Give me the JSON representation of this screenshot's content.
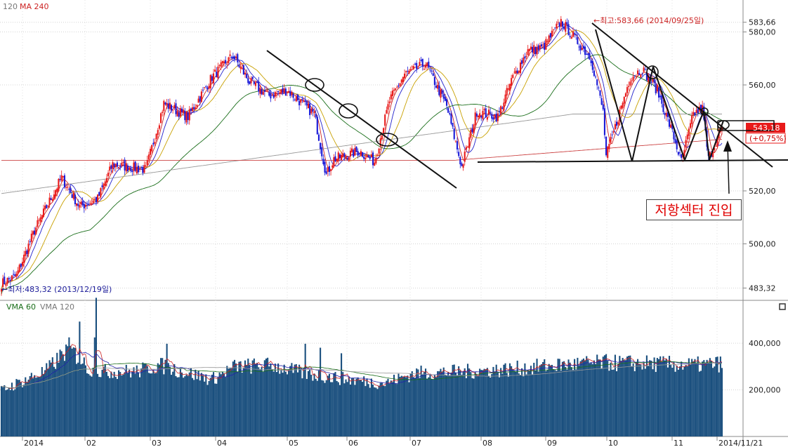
{
  "chart_data": {
    "type": "candlestick",
    "price_panel": {
      "legend": {
        "prefix": ", 120",
        "ma240": "MA 240"
      },
      "y_ticks": [
        {
          "v": 583.66,
          "label": "583,66"
        },
        {
          "v": 580,
          "label": "580,00"
        },
        {
          "v": 560,
          "label": "560,00"
        },
        {
          "v": 520,
          "label": "520,00"
        },
        {
          "v": 500,
          "label": "500,00"
        },
        {
          "v": 483.32,
          "label": "483,32"
        }
      ],
      "ylim": [
        480,
        591
      ],
      "high_label": "←최고:583,66 (2014/09/25일)",
      "low_label": "←최저:483,32 (2013/12/19일)",
      "current_price": "543,18",
      "current_change": "(+0,75%)",
      "annotation": "저항섹터 진입"
    },
    "volume_panel": {
      "legend": {
        "vma60": "VMA 60",
        "vma120": "VMA 120"
      },
      "y_ticks": [
        {
          "v": 400000,
          "label": "400,000"
        },
        {
          "v": 200000,
          "label": "200,000"
        }
      ],
      "ylim": [
        0,
        560000
      ]
    },
    "x_ticks": [
      "2014",
      "02",
      "03",
      "04",
      "05",
      "06",
      "07",
      "08",
      "09",
      "10",
      "11",
      "2014/11/21"
    ],
    "price_anchors": [
      [
        0,
        485
      ],
      [
        10,
        488
      ],
      [
        22,
        505
      ],
      [
        40,
        525
      ],
      [
        52,
        514
      ],
      [
        64,
        517
      ],
      [
        74,
        530
      ],
      [
        96,
        528
      ],
      [
        108,
        553
      ],
      [
        124,
        548
      ],
      [
        140,
        563
      ],
      [
        150,
        569
      ],
      [
        154,
        571
      ],
      [
        165,
        561
      ],
      [
        178,
        556
      ],
      [
        190,
        558
      ],
      [
        208,
        549
      ],
      [
        216,
        526
      ],
      [
        221,
        532
      ],
      [
        238,
        535
      ],
      [
        248,
        531
      ],
      [
        258,
        554
      ],
      [
        268,
        564
      ],
      [
        282,
        568
      ],
      [
        296,
        552
      ],
      [
        306,
        529
      ],
      [
        316,
        550
      ],
      [
        330,
        548
      ],
      [
        340,
        563
      ],
      [
        350,
        573
      ],
      [
        360,
        574
      ],
      [
        372,
        584
      ],
      [
        382,
        577
      ],
      [
        392,
        570
      ],
      [
        400,
        550
      ],
      [
        402,
        533
      ],
      [
        408,
        544
      ],
      [
        418,
        563
      ],
      [
        426,
        566
      ],
      [
        436,
        558
      ],
      [
        446,
        542
      ],
      [
        452,
        531
      ],
      [
        460,
        549
      ],
      [
        466,
        551
      ],
      [
        470,
        532
      ],
      [
        478,
        543
      ]
    ],
    "volume_profile": [
      [
        0,
        0.58
      ],
      [
        30,
        0.83
      ],
      [
        45,
        1.12
      ],
      [
        60,
        0.82
      ],
      [
        90,
        0.82
      ],
      [
        105,
        0.9
      ],
      [
        140,
        0.72
      ],
      [
        155,
        0.88
      ],
      [
        180,
        0.9
      ],
      [
        200,
        0.8
      ],
      [
        230,
        0.72
      ],
      [
        255,
        0.67
      ],
      [
        275,
        0.8
      ],
      [
        310,
        0.82
      ],
      [
        340,
        0.85
      ],
      [
        370,
        0.9
      ],
      [
        400,
        0.93
      ],
      [
        430,
        0.92
      ],
      [
        460,
        0.9
      ],
      [
        480,
        0.92
      ]
    ],
    "volume_spikes": [
      [
        52,
        1.45
      ],
      [
        62,
        1.25
      ],
      [
        63,
        1.75
      ],
      [
        110,
        1.17
      ],
      [
        202,
        1.17
      ],
      [
        212,
        1.12
      ],
      [
        226,
        1.05
      ]
    ]
  }
}
